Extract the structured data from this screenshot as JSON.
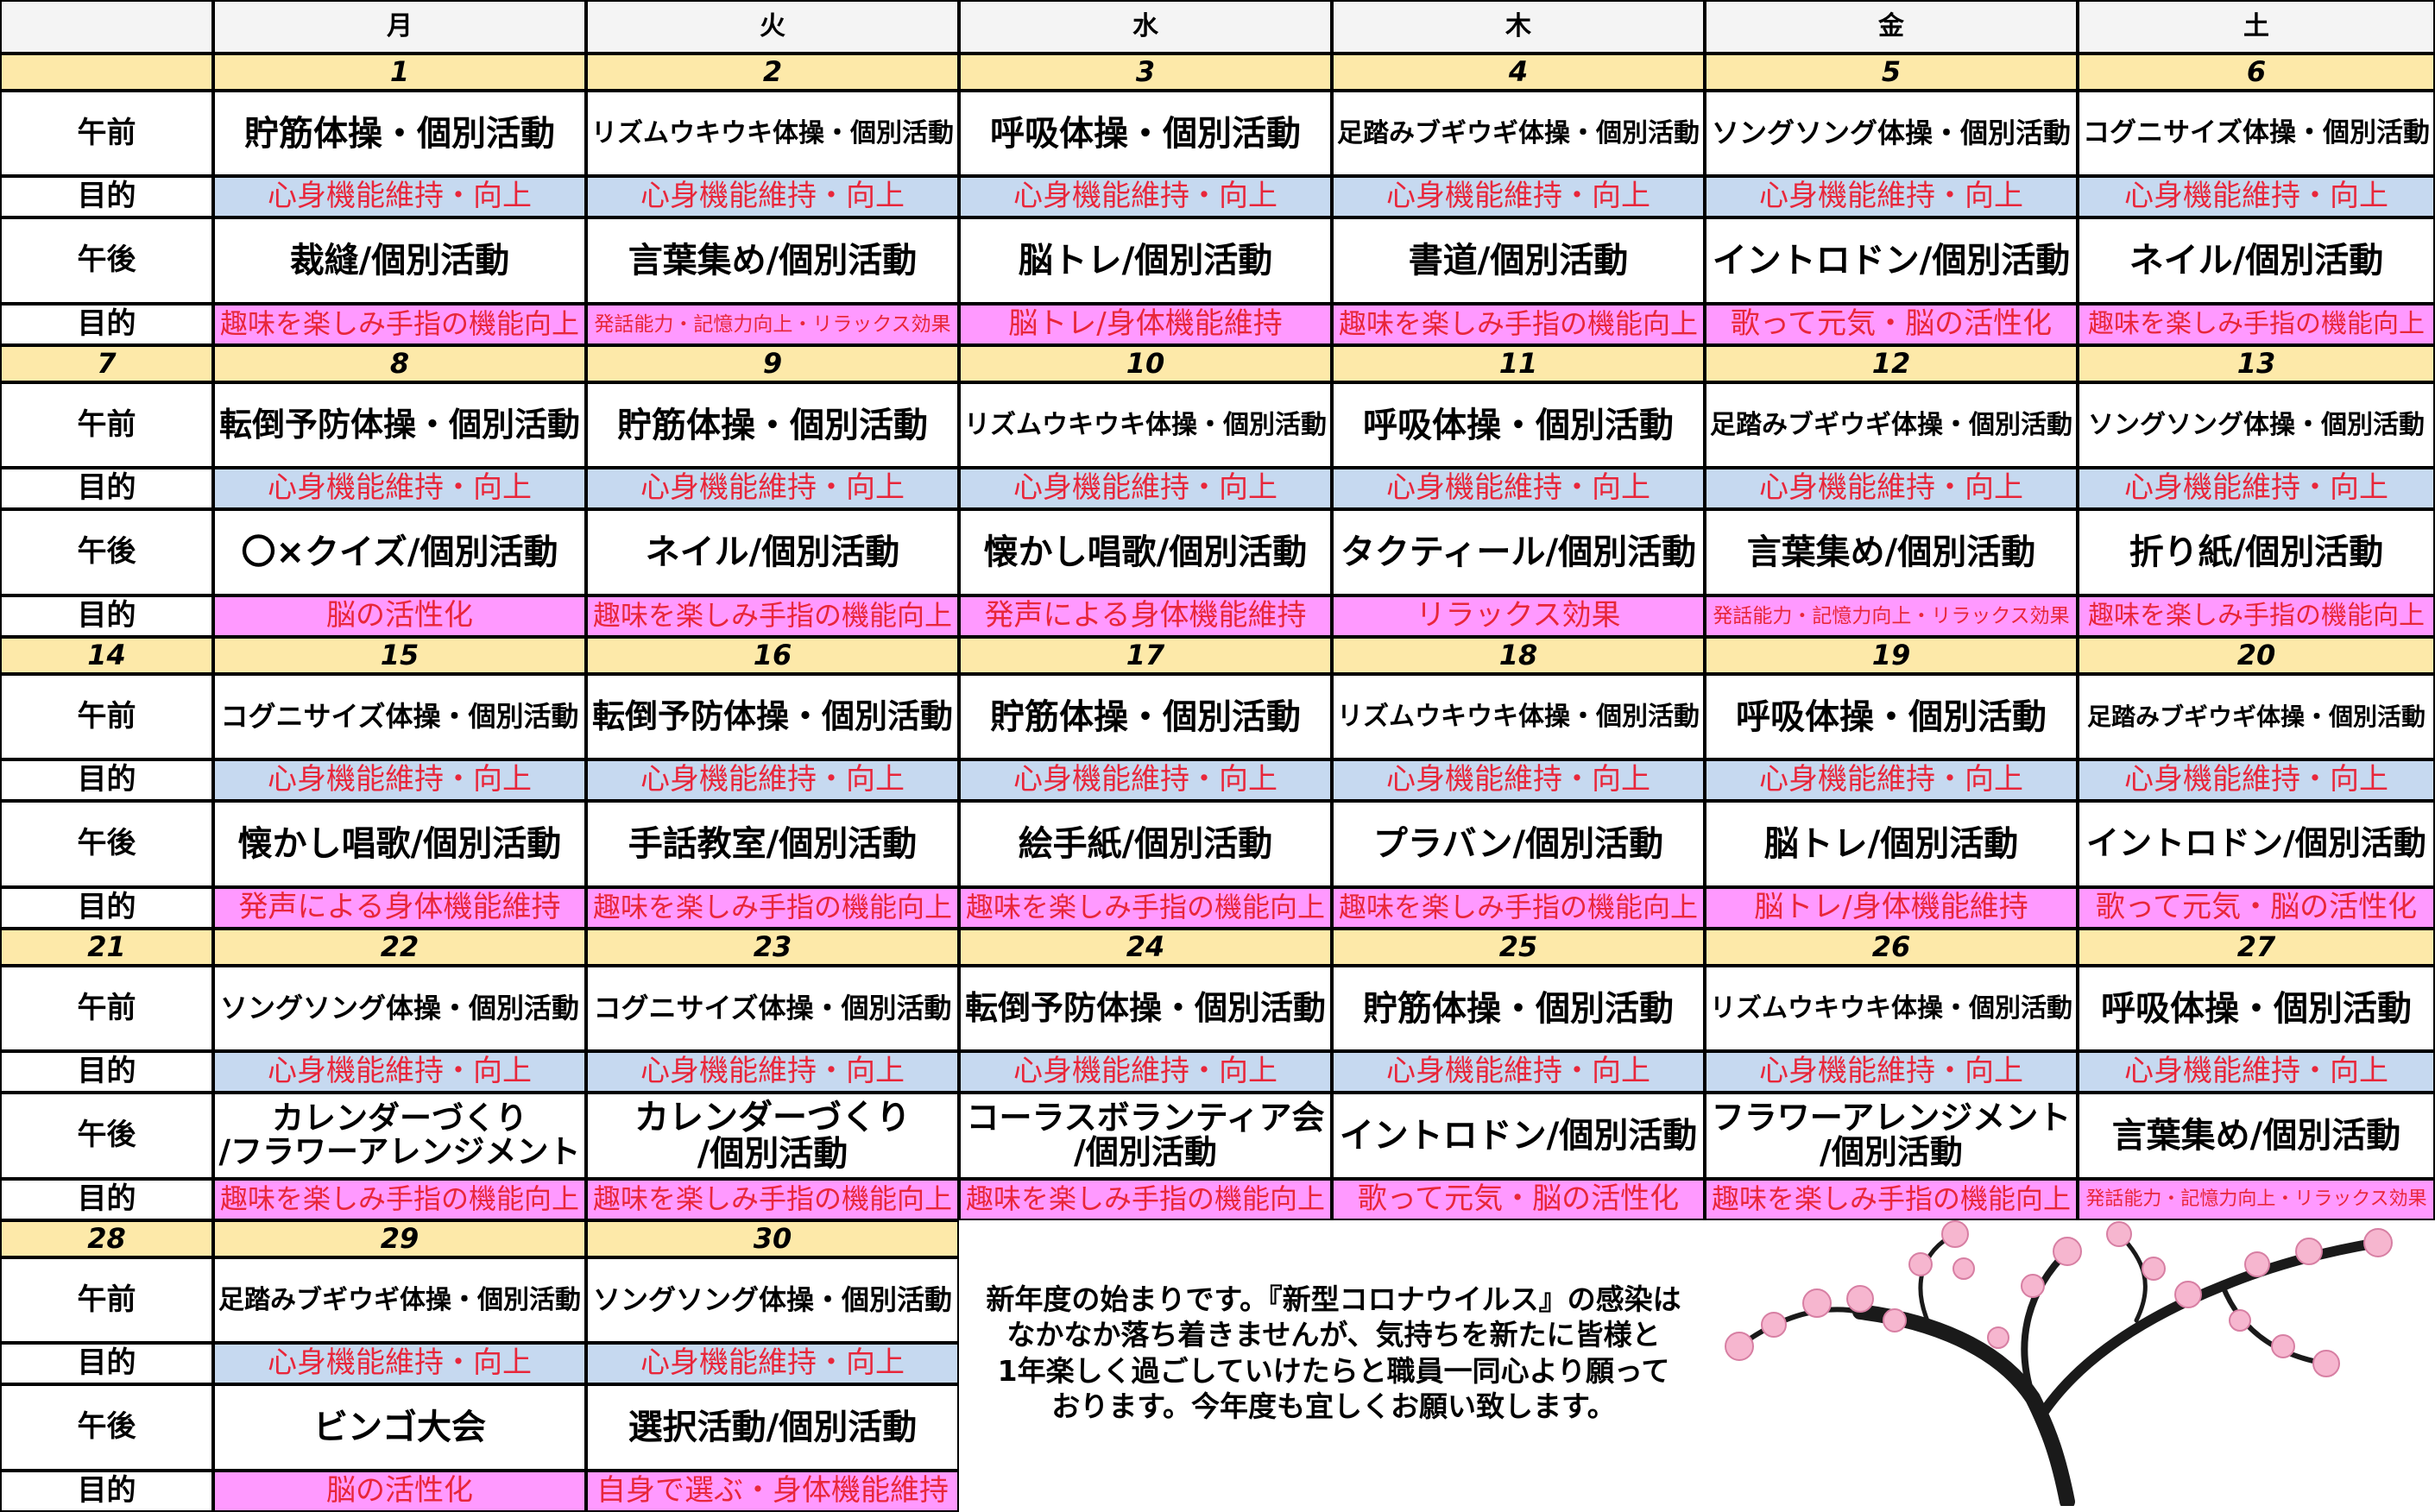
{
  "header": {
    "days": [
      "月",
      "火",
      "水",
      "木",
      "金",
      "土"
    ]
  },
  "labels": {
    "am": "午前",
    "pm": "午後",
    "goal": "目的"
  },
  "weeks": [
    {
      "dates": [
        null,
        "1",
        "2",
        "3",
        "4",
        "5",
        "6"
      ],
      "am": [
        "貯筋体操・個別活動",
        "リズムウキウキ体操・個別活動",
        "呼吸体操・個別活動",
        "足踏みブギウギ体操・個別活動",
        "ソングソング体操・個別活動",
        "コグニサイズ体操・個別活動"
      ],
      "am_goal": [
        "心身機能維持・向上",
        "心身機能維持・向上",
        "心身機能維持・向上",
        "心身機能維持・向上",
        "心身機能維持・向上",
        "心身機能維持・向上"
      ],
      "pm": [
        "裁縫/個別活動",
        "言葉集め/個別活動",
        "脳トレ/個別活動",
        "書道/個別活動",
        "イントロドン/個別活動",
        "ネイル/個別活動"
      ],
      "pm_goal": [
        "趣味を楽しみ手指の機能向上",
        "発話能力・記憶力向上・リラックス効果",
        "脳トレ/身体機能維持",
        "趣味を楽しみ手指の機能向上",
        "歌って元気・脳の活性化",
        "趣味を楽しみ手指の機能向上"
      ]
    },
    {
      "dates": [
        "7",
        "8",
        "9",
        "10",
        "11",
        "12",
        "13"
      ],
      "am": [
        "転倒予防体操・個別活動",
        "貯筋体操・個別活動",
        "リズムウキウキ体操・個別活動",
        "呼吸体操・個別活動",
        "足踏みブギウギ体操・個別活動",
        "ソングソング体操・個別活動"
      ],
      "am_goal": [
        "心身機能維持・向上",
        "心身機能維持・向上",
        "心身機能維持・向上",
        "心身機能維持・向上",
        "心身機能維持・向上",
        "心身機能維持・向上"
      ],
      "pm": [
        "〇×クイズ/個別活動",
        "ネイル/個別活動",
        "懐かし唱歌/個別活動",
        "タクティール/個別活動",
        "言葉集め/個別活動",
        "折り紙/個別活動"
      ],
      "pm_goal": [
        "脳の活性化",
        "趣味を楽しみ手指の機能向上",
        "発声による身体機能維持",
        "リラックス効果",
        "発話能力・記憶力向上・リラックス効果",
        "趣味を楽しみ手指の機能向上"
      ]
    },
    {
      "dates": [
        "14",
        "15",
        "16",
        "17",
        "18",
        "19",
        "20"
      ],
      "am": [
        "コグニサイズ体操・個別活動",
        "転倒予防体操・個別活動",
        "貯筋体操・個別活動",
        "リズムウキウキ体操・個別活動",
        "呼吸体操・個別活動",
        "足踏みブギウギ体操・個別活動"
      ],
      "am_goal": [
        "心身機能維持・向上",
        "心身機能維持・向上",
        "心身機能維持・向上",
        "心身機能維持・向上",
        "心身機能維持・向上",
        "心身機能維持・向上"
      ],
      "pm": [
        "懐かし唱歌/個別活動",
        "手話教室/個別活動",
        "絵手紙/個別活動",
        "プラバン/個別活動",
        "脳トレ/個別活動",
        "イントロドン/個別活動"
      ],
      "pm_goal": [
        "発声による身体機能維持",
        "趣味を楽しみ手指の機能向上",
        "趣味を楽しみ手指の機能向上",
        "趣味を楽しみ手指の機能向上",
        "脳トレ/身体機能維持",
        "歌って元気・脳の活性化"
      ]
    },
    {
      "dates": [
        "21",
        "22",
        "23",
        "24",
        "25",
        "26",
        "27"
      ],
      "am": [
        "ソングソング体操・個別活動",
        "コグニサイズ体操・個別活動",
        "転倒予防体操・個別活動",
        "貯筋体操・個別活動",
        "リズムウキウキ体操・個別活動",
        "呼吸体操・個別活動"
      ],
      "am_goal": [
        "心身機能維持・向上",
        "心身機能維持・向上",
        "心身機能維持・向上",
        "心身機能維持・向上",
        "心身機能維持・向上",
        "心身機能維持・向上"
      ],
      "pm": [
        "カレンダーづくり\n/フラワーアレンジメント",
        "カレンダーづくり\n/個別活動",
        "コーラスボランティア会\n/個別活動",
        "イントロドン/個別活動",
        "フラワーアレンジメント\n/個別活動",
        "言葉集め/個別活動"
      ],
      "pm_goal": [
        "趣味を楽しみ手指の機能向上",
        "趣味を楽しみ手指の機能向上",
        "趣味を楽しみ手指の機能向上",
        "歌って元気・脳の活性化",
        "趣味を楽しみ手指の機能向上",
        "発話能力・記憶力向上・リラックス効果"
      ]
    },
    {
      "dates": [
        "28",
        "29",
        "30"
      ],
      "am": [
        "足踏みブギウギ体操・個別活動",
        "ソングソング体操・個別活動"
      ],
      "am_goal": [
        "心身機能維持・向上",
        "心身機能維持・向上"
      ],
      "pm": [
        "ビンゴ大会",
        "選択活動/個別活動"
      ],
      "pm_goal": [
        "脳の活性化",
        "自身で選ぶ・身体機能維持"
      ]
    }
  ],
  "message": "新年度の始まりです。『新型コロナウイルス』の感染は\nなかなか落ち着きませんが、気持ちを新たに皆様と\n1年楽しく過ごしていけたらと職員一同心より願って\nおります。今年度も宜しくお願い致します。"
}
